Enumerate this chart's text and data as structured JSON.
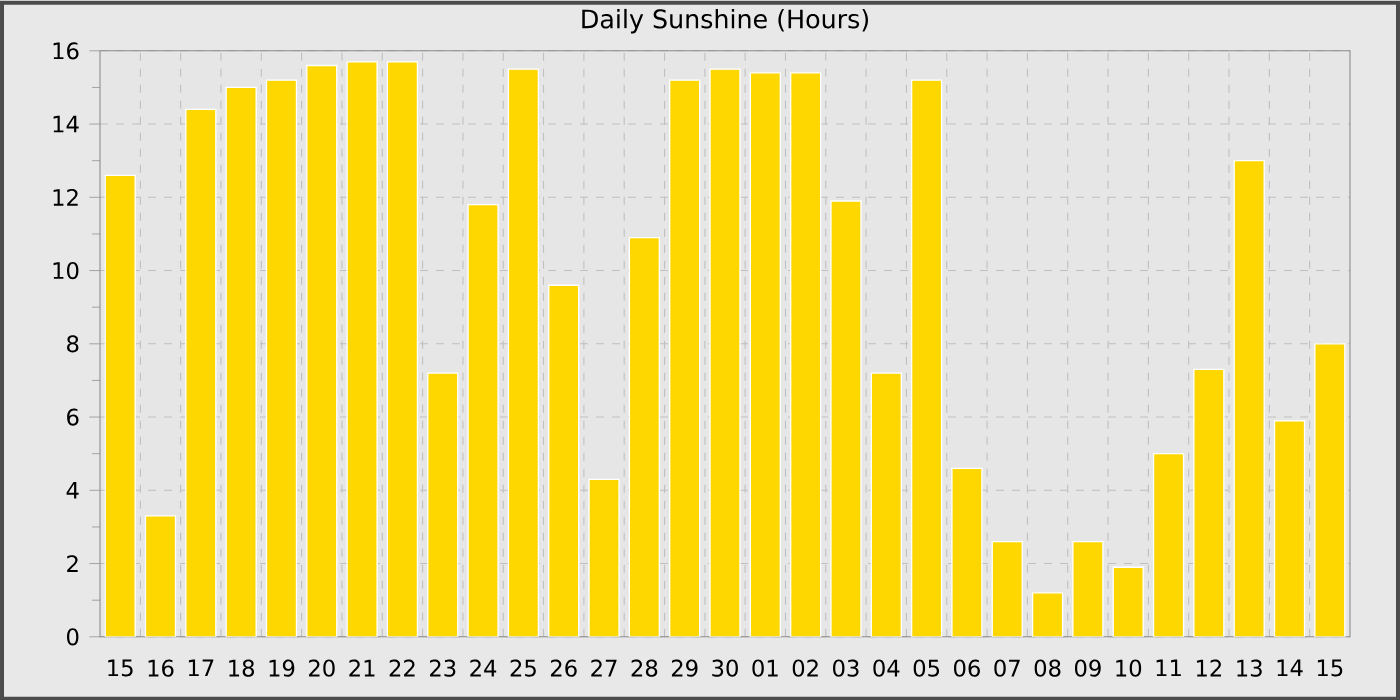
{
  "chart_data": {
    "type": "bar",
    "title": "Daily Sunshine (Hours)",
    "categories": [
      "15",
      "16",
      "17",
      "18",
      "19",
      "20",
      "21",
      "22",
      "23",
      "24",
      "25",
      "26",
      "27",
      "28",
      "29",
      "30",
      "01",
      "02",
      "03",
      "04",
      "05",
      "06",
      "07",
      "08",
      "09",
      "10",
      "11",
      "12",
      "13",
      "14",
      "15"
    ],
    "values": [
      12.6,
      3.3,
      14.4,
      15.0,
      15.2,
      15.6,
      15.7,
      15.7,
      7.2,
      11.8,
      15.5,
      9.6,
      4.3,
      10.9,
      15.2,
      15.5,
      15.4,
      15.4,
      11.9,
      7.2,
      15.2,
      4.6,
      2.6,
      1.2,
      2.6,
      1.9,
      5.0,
      7.3,
      13.0,
      5.9,
      8.0
    ],
    "color": "#ffd700",
    "ylim": [
      0,
      16
    ],
    "yticks": [
      0,
      2,
      4,
      6,
      8,
      10,
      12,
      14,
      16
    ],
    "grid": true
  }
}
